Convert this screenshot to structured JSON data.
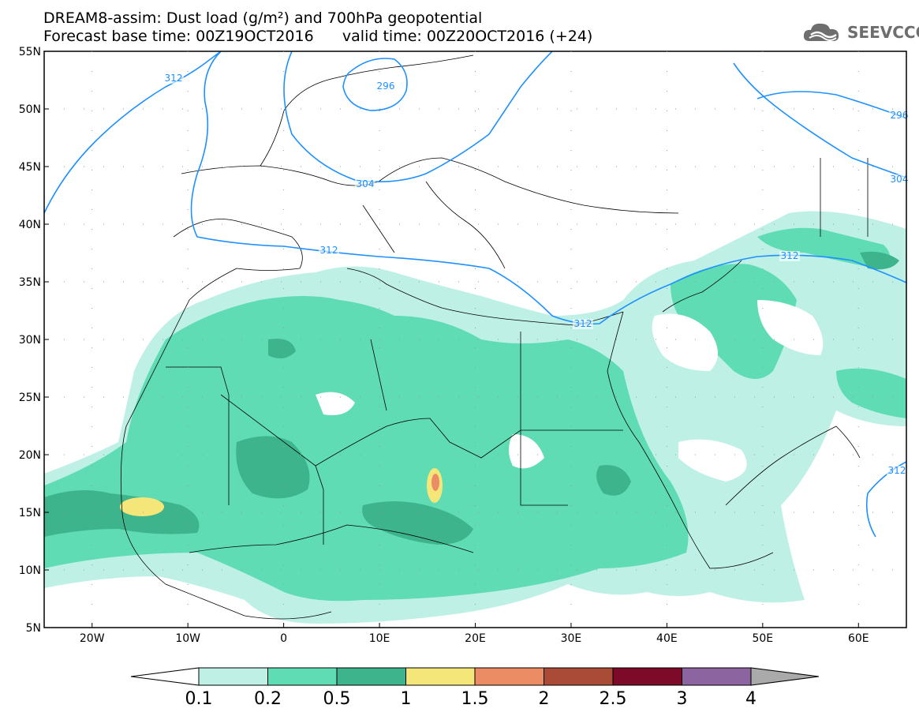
{
  "header": {
    "title_line1": "DREAM8-assim: Dust load (g/m²) and 700hPa geopotential",
    "title_line2": "Forecast base time: 00Z19OCT2016      valid time: 00Z20OCT2016 (+24)"
  },
  "logo": {
    "text": "SEEVCCC",
    "icon": "cloud-icon"
  },
  "map": {
    "lon_range": [
      -25,
      65
    ],
    "lat_range": [
      5,
      55
    ],
    "lon_ticks": [
      "20W",
      "10W",
      "0",
      "10E",
      "20E",
      "30E",
      "40E",
      "50E",
      "60E"
    ],
    "lat_ticks": [
      "55N",
      "50N",
      "45N",
      "40N",
      "35N",
      "30N",
      "25N",
      "20N",
      "15N",
      "10N",
      "5N"
    ],
    "geopotential_contour_labels": [
      "312",
      "296",
      "304",
      "312",
      "312",
      "312",
      "304",
      "312",
      "296"
    ],
    "contour_color": "#1e90ff"
  },
  "colorbar": {
    "labels": [
      "0.1",
      "0.2",
      "0.5",
      "1",
      "1.5",
      "2",
      "2.5",
      "3",
      "4"
    ],
    "colors": [
      "#bff0e6",
      "#5fdcb4",
      "#3eb48c",
      "#f5e67a",
      "#eb8c64",
      "#aa4b37",
      "#7d0a28",
      "#8c64a0",
      "#aaaaaa"
    ]
  }
}
